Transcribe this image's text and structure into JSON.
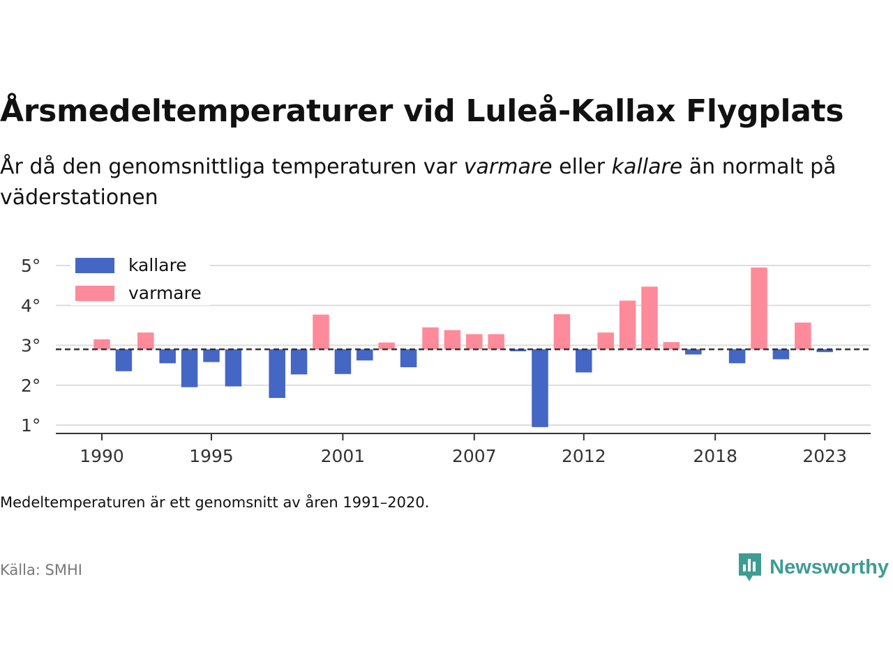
{
  "title": "Årsmedeltemperaturer vid Luleå-Kallax Flygplats",
  "subtitle": {
    "part1": "År då den genomsnittliga temperaturen var ",
    "warmer": "varmare",
    "part2": " eller ",
    "colder": "kallare",
    "part3": " än normalt på väderstationen"
  },
  "note": "Medeltemperaturen är ett genomsnitt av åren 1991–2020.",
  "source": "Källa: SMHI",
  "brand": {
    "name": "Newsworthy",
    "icon": "newsworthy-logo-icon"
  },
  "colors": {
    "kallare": "#4466c4",
    "varmare": "#ff8a9a",
    "reference_line": "#333333",
    "grid": "#dddddd",
    "brand": "#3e9c92"
  },
  "chart_data": {
    "type": "bar",
    "baseline": 2.9,
    "x": [
      1990,
      1991,
      1992,
      1993,
      1994,
      1995,
      1996,
      1997,
      1998,
      1999,
      2000,
      2001,
      2002,
      2003,
      2004,
      2005,
      2006,
      2007,
      2008,
      2009,
      2010,
      2011,
      2012,
      2013,
      2014,
      2015,
      2016,
      2017,
      2018,
      2019,
      2020,
      2021,
      2022,
      2023
    ],
    "values": [
      3.15,
      2.35,
      3.32,
      2.55,
      1.95,
      2.58,
      1.97,
      null,
      1.68,
      2.27,
      3.77,
      2.28,
      2.62,
      3.07,
      2.45,
      3.45,
      3.38,
      3.28,
      3.28,
      2.85,
      0.95,
      3.78,
      2.32,
      3.32,
      4.12,
      4.47,
      3.08,
      2.77,
      null,
      2.55,
      4.95,
      2.65,
      3.57,
      2.83
    ],
    "series": [
      {
        "name": "kallare"
      },
      {
        "name": "varmare"
      }
    ],
    "y_ticks": [
      1,
      2,
      3,
      4,
      5
    ],
    "y_tick_suffix": "°",
    "x_ticks": [
      1990,
      1995,
      2001,
      2007,
      2012,
      2018,
      2023
    ],
    "ylim": [
      0.8,
      5.2
    ],
    "grid": true,
    "legend_position": "top-left"
  }
}
